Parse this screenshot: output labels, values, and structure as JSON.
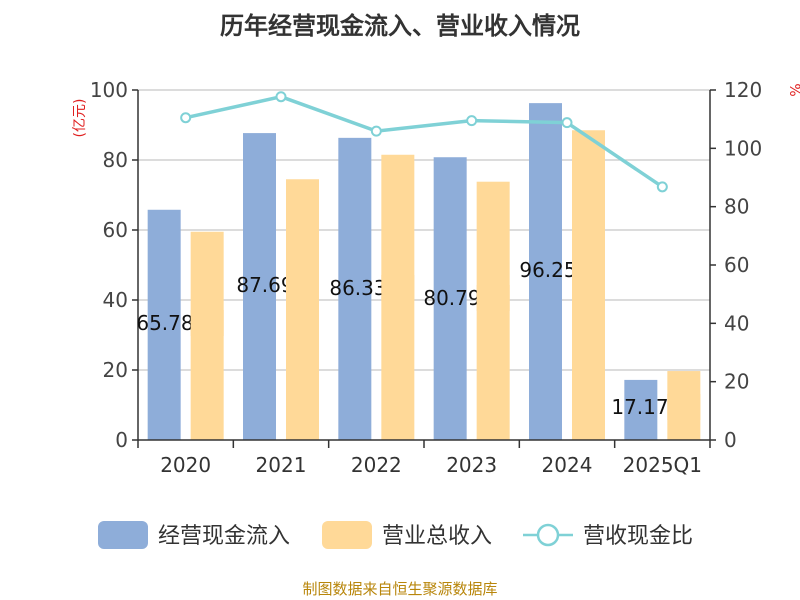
{
  "title": "历年经营现金流入、营业收入情况",
  "source": "制图数据来自恒生聚源数据库",
  "colors": {
    "cash_inflow": "#8EADD9",
    "revenue": "#FFD998",
    "ratio_line": "#7FD1D6",
    "grid": "#c8c8c8",
    "axis": "#333333",
    "unit": "#e02020",
    "source": "#b8860b"
  },
  "chart_data": {
    "type": "bar",
    "title": "历年经营现金流入、营业收入情况",
    "categories": [
      "2020",
      "2021",
      "2022",
      "2023",
      "2024",
      "2025Q1"
    ],
    "left_axis": {
      "unit": "(亿元)",
      "ylim": [
        0,
        100
      ],
      "ticks": [
        "0",
        "20",
        "40",
        "60",
        "80",
        "100"
      ]
    },
    "right_axis": {
      "unit": "%",
      "ylim": [
        0,
        120
      ],
      "ticks": [
        "0",
        "20",
        "40",
        "60",
        "80",
        "100",
        "120"
      ]
    },
    "series": [
      {
        "name": "经营现金流入",
        "type": "bar",
        "axis": "left",
        "values": [
          65.78,
          87.69,
          86.33,
          80.79,
          96.25,
          17.17
        ],
        "labels": [
          "65.78",
          "87.69",
          "86.33",
          "80.79",
          "96.25",
          "17.17"
        ]
      },
      {
        "name": "营业总收入",
        "type": "bar",
        "axis": "left",
        "values": [
          59.5,
          74.5,
          81.5,
          73.8,
          88.5,
          19.7
        ]
      },
      {
        "name": "营收现金比",
        "type": "line",
        "axis": "right",
        "values": [
          110.5,
          117.7,
          105.9,
          109.5,
          108.8,
          86.8
        ]
      }
    ],
    "grid": true,
    "legend_position": "bottom"
  }
}
